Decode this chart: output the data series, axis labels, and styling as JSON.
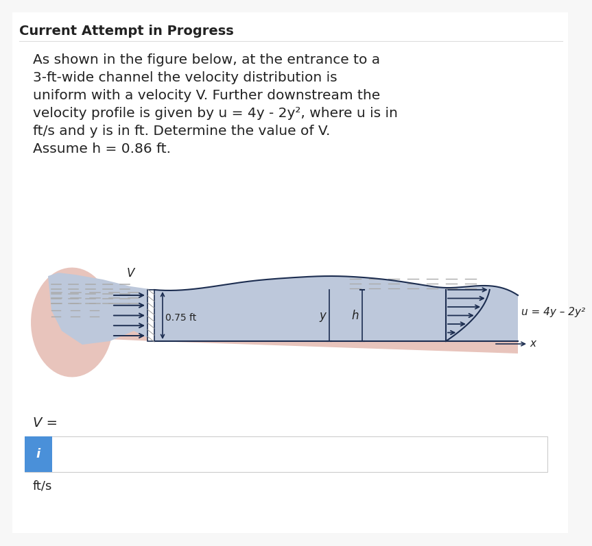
{
  "title": "Current Attempt in Progress",
  "title_fontsize": 14,
  "body_lines": [
    "As shown in the figure below, at the entrance to a",
    "3-ft-wide channel the velocity distribution is",
    "uniform with a velocity V. Further downstream the",
    "velocity profile is given by u = 4y - 2y², where u is in",
    "ft/s and y is in ft. Determine the value of V.",
    "Assume h = 0.86 ft."
  ],
  "body_fontsize": 14.5,
  "v_label": "V",
  "width_label": "0.75 ft",
  "y_label": "y",
  "h_label": "h",
  "eq_label": "u = 4y – 2y²",
  "x_label": "x",
  "v_eq_label": "V =",
  "unit_label": "ft/s",
  "i_label": "i",
  "bg_color": "#f7f7f7",
  "white_panel": "#ffffff",
  "channel_fill": "#bdc8db",
  "bl_fill": "#e8c4bc",
  "wall_color": "#1c2d50",
  "arrow_color": "#1c2d50",
  "input_box_bg": "#ffffff",
  "input_border": "#cccccc",
  "i_btn_bg": "#4a90d9",
  "i_btn_fg": "#ffffff",
  "divider_color": "#dddddd",
  "text_color": "#222222",
  "hatch_color": "#999999",
  "dash_color": "#aaaaaa"
}
